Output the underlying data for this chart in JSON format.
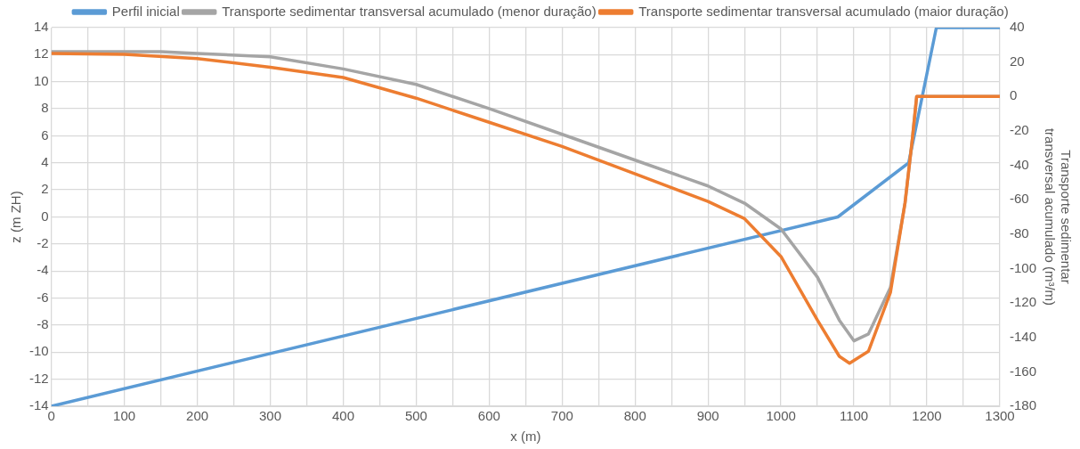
{
  "chart_data": {
    "type": "line",
    "xlabel": "x (m)",
    "ylabel": "z (m ZH)",
    "y2label": "Transporte sedimentar transversal acumulado (m³/m)",
    "xlim": [
      0,
      1300
    ],
    "xticks": [
      0,
      {
        "value": 50,
        "label": null
      },
      100,
      {
        "value": 150,
        "label": null
      },
      200,
      {
        "value": 250,
        "label": null
      },
      300,
      {
        "value": 350,
        "label": null
      },
      400,
      {
        "value": 450,
        "label": null
      },
      500,
      {
        "value": 550,
        "label": null
      },
      600,
      {
        "value": 650,
        "label": null
      },
      700,
      {
        "value": 750,
        "label": null
      },
      800,
      {
        "value": 850,
        "label": null
      },
      900,
      {
        "value": 950,
        "label": null
      },
      1000,
      {
        "value": 1050,
        "label": null
      },
      1100,
      {
        "value": 1150,
        "label": null
      },
      1200,
      {
        "value": 1250,
        "label": null
      },
      1300
    ],
    "ylim": [
      -14,
      14
    ],
    "yticks": [
      -14,
      -12,
      -10,
      -8,
      -6,
      -4,
      -2,
      0,
      2,
      4,
      6,
      8,
      10,
      12,
      14
    ],
    "y2lim": [
      -180,
      40
    ],
    "y2ticks": [
      -180,
      -160,
      -140,
      -120,
      -100,
      -80,
      -60,
      -40,
      -20,
      0,
      20,
      40
    ],
    "grid": true,
    "legend": "top",
    "marker": "none",
    "line_style": "solid",
    "series": [
      {
        "name": "Perfil inicial",
        "color": "#5b9bd5",
        "x": [
          0,
          1078,
          1175,
          1213,
          1300
        ],
        "values": [
          -14,
          0,
          4,
          14,
          14
        ]
      },
      {
        "name": "Transporte sedimentar transversal acumulado (menor duração)",
        "color": "#a5a5a5",
        "axis": "y2",
        "x": [
          0,
          150,
          200,
          300,
          400,
          500,
          600,
          700,
          800,
          900,
          950,
          1000,
          1050,
          1080,
          1100,
          1120,
          1150,
          1170,
          1180,
          1186,
          1300
        ],
        "values": [
          26,
          26,
          25,
          23,
          16,
          7,
          -7,
          -22,
          -37,
          -52,
          -62,
          -77,
          -105,
          -130,
          -142,
          -138,
          -111,
          -62,
          -25,
          0,
          0
        ]
      },
      {
        "name": "Transporte sedimentar transversal acumulado (maior duração)",
        "color": "#ed7d31",
        "axis": "y2",
        "x": [
          0,
          100,
          200,
          300,
          400,
          500,
          600,
          700,
          800,
          900,
          950,
          1000,
          1050,
          1080,
          1094,
          1120,
          1150,
          1170,
          1180,
          1186,
          1300
        ],
        "values": [
          25,
          24.5,
          22,
          17,
          11,
          -1,
          -15,
          -29,
          -45,
          -61,
          -71,
          -93,
          -130,
          -151,
          -155,
          -148,
          -114,
          -62,
          -25,
          0,
          0
        ]
      }
    ]
  }
}
